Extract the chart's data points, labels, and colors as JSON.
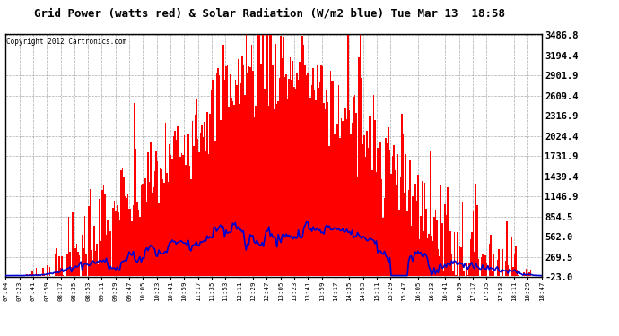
{
  "title": "Grid Power (watts red) & Solar Radiation (W/m2 blue) Tue Mar 13  18:58",
  "copyright": "Copyright 2012 Cartronics.com",
  "background_color": "#ffffff",
  "plot_bg_color": "#ffffff",
  "grid_color": "#aaaaaa",
  "bar_color": "#ff0000",
  "line_color": "#0000cc",
  "y_min": -23.0,
  "y_max": 3486.8,
  "y_ticks": [
    -23.0,
    269.5,
    562.0,
    854.5,
    1146.9,
    1439.4,
    1731.9,
    2024.4,
    2316.9,
    2609.4,
    2901.9,
    3194.4,
    3486.8
  ],
  "x_labels": [
    "07:04",
    "07:23",
    "07:41",
    "07:59",
    "08:17",
    "08:35",
    "08:53",
    "09:11",
    "09:29",
    "09:47",
    "10:05",
    "10:23",
    "10:41",
    "10:59",
    "11:17",
    "11:35",
    "11:53",
    "12:11",
    "12:29",
    "12:47",
    "13:05",
    "13:23",
    "13:41",
    "13:59",
    "14:17",
    "14:35",
    "14:53",
    "15:11",
    "15:29",
    "15:47",
    "16:05",
    "16:23",
    "16:41",
    "16:59",
    "17:17",
    "17:35",
    "17:53",
    "18:11",
    "18:29",
    "18:47"
  ],
  "num_points": 400
}
